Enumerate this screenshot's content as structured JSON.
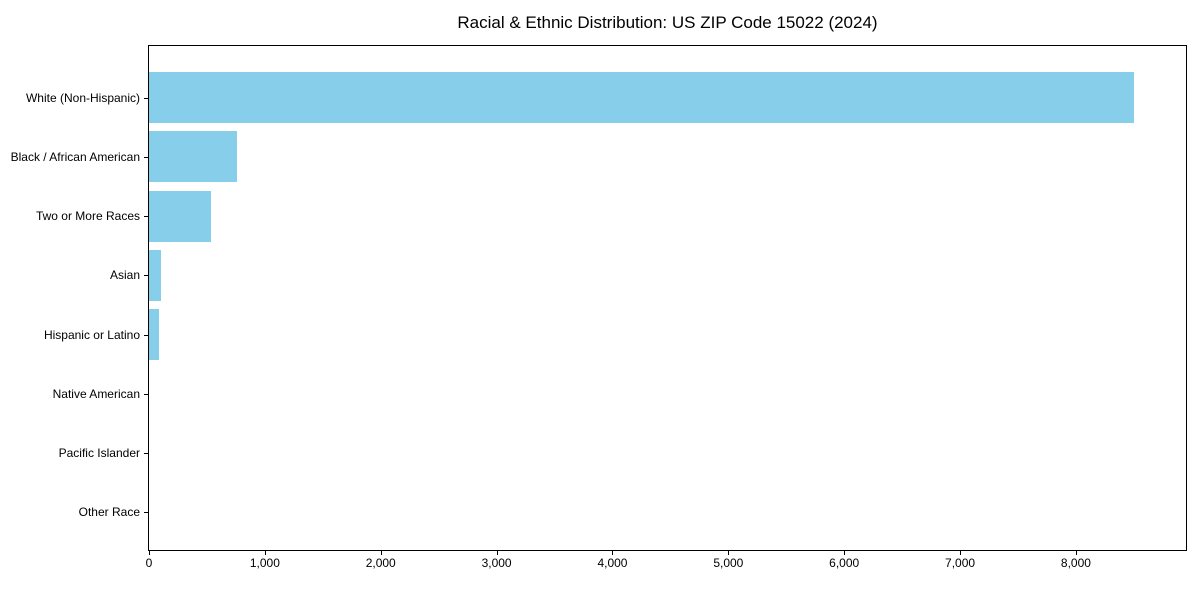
{
  "chart_data": {
    "type": "bar",
    "orientation": "horizontal",
    "title": "Racial & Ethnic Distribution: US ZIP Code 15022 (2024)",
    "categories": [
      "White (Non-Hispanic)",
      "Black / African American",
      "Two or More Races",
      "Asian",
      "Hispanic or Latino",
      "Native American",
      "Pacific Islander",
      "Other Race"
    ],
    "values": [
      8500,
      760,
      535,
      100,
      85,
      0,
      0,
      0
    ],
    "xlabel": "",
    "ylabel": "",
    "xlim": [
      0,
      8950
    ],
    "xticks": [
      0,
      1000,
      2000,
      3000,
      4000,
      5000,
      6000,
      7000,
      8000
    ],
    "bar_color": "#87CEEB",
    "grid": false,
    "legend": "none",
    "background_color": "#ffffff",
    "axis_color": "#000000"
  }
}
